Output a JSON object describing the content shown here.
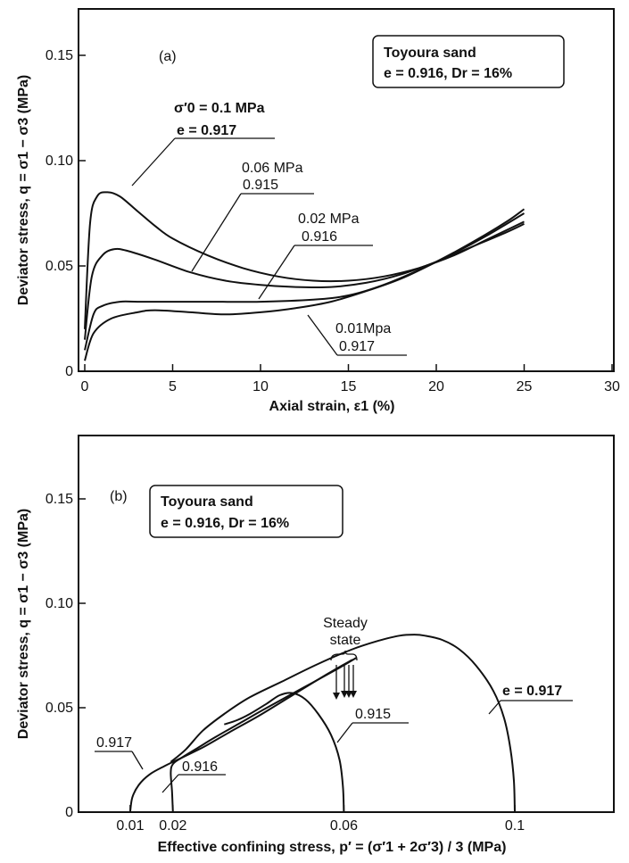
{
  "chart_data": [
    {
      "type": "line",
      "panel_label": "(a)",
      "info_box": [
        "Toyoura sand",
        "e = 0.916, Dr = 16%"
      ],
      "xlabel": "Axial strain, ε1 (%)",
      "ylabel": "Deviator stress, q = σ1 − σ3 (MPa)",
      "xlim": [
        0,
        30
      ],
      "ylim": [
        0,
        0.17
      ],
      "xticks": [
        "0",
        "5",
        "10",
        "15",
        "20",
        "25",
        "30"
      ],
      "yticks": [
        "0",
        "0.05",
        "0.10",
        "0.15"
      ],
      "series": [
        {
          "name": "σ′0 = 0.1 MPa, e = 0.917",
          "x": [
            0,
            0.3,
            0.7,
            1.3,
            2,
            3,
            4,
            5,
            7,
            9,
            11,
            13,
            15,
            17,
            19,
            21,
            23,
            25
          ],
          "y": [
            0.02,
            0.07,
            0.083,
            0.085,
            0.083,
            0.076,
            0.069,
            0.063,
            0.055,
            0.049,
            0.045,
            0.043,
            0.043,
            0.045,
            0.049,
            0.055,
            0.063,
            0.071
          ]
        },
        {
          "name": "0.06 MPa, 0.915",
          "x": [
            0,
            0.4,
            1,
            1.7,
            2.5,
            4,
            6,
            8,
            10,
            12,
            14,
            16,
            18,
            20,
            22,
            24,
            25
          ],
          "y": [
            0.015,
            0.045,
            0.055,
            0.058,
            0.057,
            0.053,
            0.047,
            0.043,
            0.041,
            0.04,
            0.04,
            0.042,
            0.046,
            0.052,
            0.059,
            0.066,
            0.07
          ]
        },
        {
          "name": "0.02 MPa, 0.916",
          "x": [
            0,
            0.5,
            1,
            2,
            3,
            5,
            7,
            10,
            13,
            15,
            17,
            19,
            21,
            23,
            25
          ],
          "y": [
            0.01,
            0.027,
            0.031,
            0.033,
            0.033,
            0.033,
            0.033,
            0.033,
            0.034,
            0.036,
            0.041,
            0.048,
            0.056,
            0.065,
            0.075
          ]
        },
        {
          "name": "0.01 Mpa, 0.917",
          "x": [
            0,
            0.5,
            1.5,
            3,
            4,
            6,
            8,
            10,
            12,
            14,
            16,
            18,
            20,
            22,
            24,
            25
          ],
          "y": [
            0.005,
            0.018,
            0.025,
            0.028,
            0.029,
            0.028,
            0.027,
            0.028,
            0.03,
            0.033,
            0.038,
            0.044,
            0.052,
            0.061,
            0.071,
            0.077
          ]
        }
      ],
      "annotations": [
        {
          "text": "σ′0 = 0.1 MPa",
          "bold": true
        },
        {
          "text": "e = 0.917",
          "bold": true
        },
        {
          "text": "0.06 MPa"
        },
        {
          "text": "0.915"
        },
        {
          "text": "0.02 MPa"
        },
        {
          "text": "0.916"
        },
        {
          "text": "0.01Mpa"
        },
        {
          "text": "0.917"
        }
      ]
    },
    {
      "type": "line",
      "panel_label": "(b)",
      "info_box": [
        "Toyoura sand",
        "e = 0.916, Dr = 16%"
      ],
      "xlabel": "Effective confining stress, p′ = (σ′1 + 2σ′3) / 3 (MPa)",
      "ylabel": "Deviator stress, q = σ1 − σ3 (MPa)",
      "xlim": [
        0,
        0.12
      ],
      "ylim": [
        0,
        0.17
      ],
      "xticks": [
        "0.01",
        "0.02",
        "0.06",
        "0.1"
      ],
      "yticks": [
        "0",
        "0.05",
        "0.10",
        "0.15"
      ],
      "steady_state_label": [
        "Steady",
        "state"
      ],
      "series": [
        {
          "name": "e = 0.917 (0.1 MPa)",
          "x": [
            0.1,
            0.0998,
            0.099,
            0.0975,
            0.095,
            0.091,
            0.087,
            0.083,
            0.079,
            0.0765,
            0.073,
            0.068,
            0.062,
            0.054,
            0.046,
            0.038,
            0.032,
            0.027,
            0.023,
            0.0195
          ],
          "y": [
            0,
            0.015,
            0.03,
            0.045,
            0.058,
            0.07,
            0.078,
            0.0825,
            0.0845,
            0.085,
            0.0845,
            0.082,
            0.078,
            0.071,
            0.063,
            0.055,
            0.047,
            0.039,
            0.03,
            0.024
          ]
        },
        {
          "name": "0.915 (0.06 MPa)",
          "x": [
            0.06,
            0.0598,
            0.059,
            0.057,
            0.054,
            0.051,
            0.048,
            0.045,
            0.042,
            0.038,
            0.035,
            0.032
          ],
          "y": [
            0,
            0.012,
            0.025,
            0.037,
            0.047,
            0.054,
            0.057,
            0.056,
            0.052,
            0.047,
            0.044,
            0.042
          ]
        },
        {
          "name": "0.916 (0.02 MPa)",
          "x": [
            0.02,
            0.0198,
            0.0195,
            0.02,
            0.022,
            0.026,
            0.03,
            0.036,
            0.042,
            0.05,
            0.058,
            0.063
          ],
          "y": [
            0,
            0.01,
            0.019,
            0.023,
            0.026,
            0.031,
            0.036,
            0.043,
            0.05,
            0.059,
            0.068,
            0.074
          ]
        },
        {
          "name": "0.917 (0.01 MPa)",
          "x": [
            0.01,
            0.0105,
            0.012,
            0.0145,
            0.018,
            0.022,
            0.027,
            0.033,
            0.04,
            0.048,
            0.056,
            0.062
          ],
          "y": [
            0,
            0.007,
            0.013,
            0.018,
            0.022,
            0.026,
            0.031,
            0.038,
            0.046,
            0.056,
            0.066,
            0.073
          ]
        }
      ],
      "annotations": [
        {
          "text": "e = 0.917",
          "bold": true
        },
        {
          "text": "0.915"
        },
        {
          "text": "0.916"
        },
        {
          "text": "0.917"
        }
      ]
    }
  ]
}
